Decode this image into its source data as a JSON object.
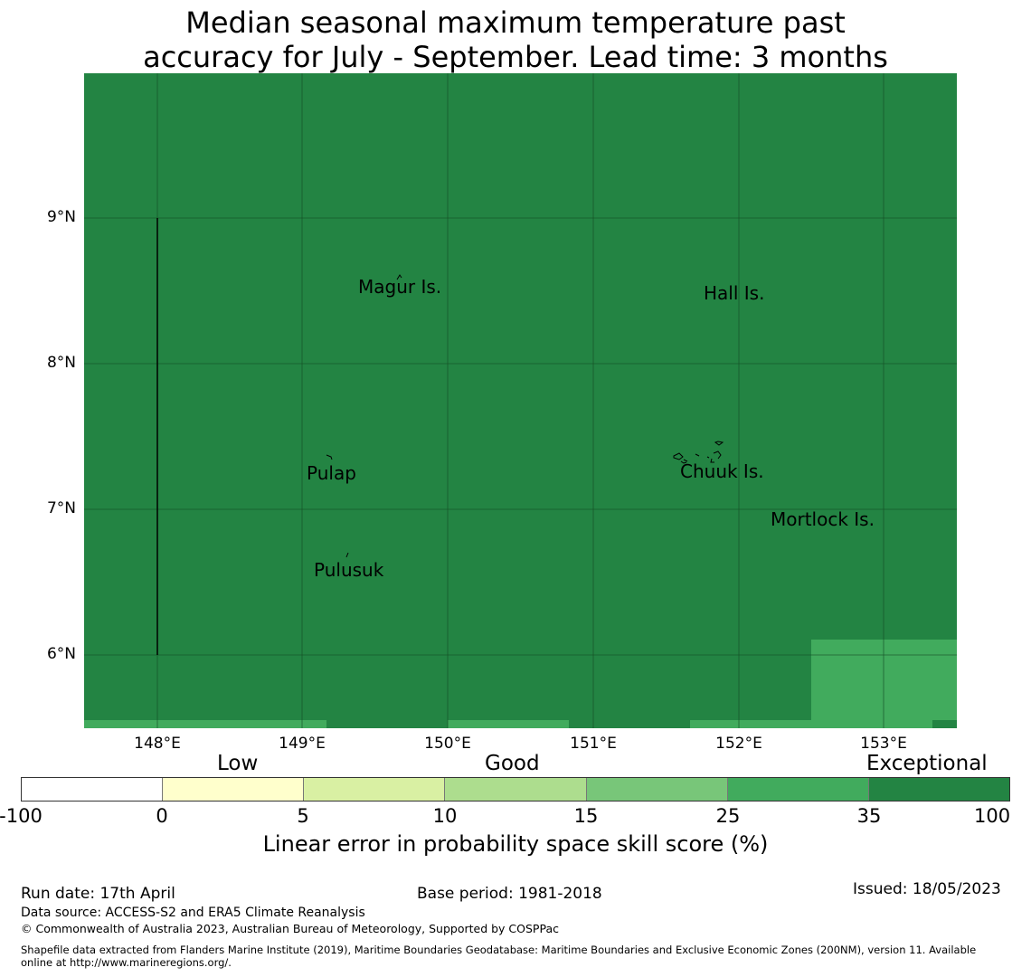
{
  "title": {
    "line1": "Median seasonal maximum temperature past",
    "line2": "accuracy for July - September. Lead time: 3 months"
  },
  "map": {
    "lat_ticks": [
      "9°N",
      "8°N",
      "7°N",
      "6°N"
    ],
    "lon_ticks": [
      "148°E",
      "149°E",
      "150°E",
      "151°E",
      "152°E",
      "153°E"
    ],
    "places": [
      "Magur Is.",
      "Hall Is.",
      "Pulap",
      "Chuuk Is.",
      "Mortlock Is.",
      "Pulusuk"
    ],
    "colors": {
      "exceptional": "#238443",
      "good_high": "#41ab5d"
    }
  },
  "colorbar": {
    "categories": [
      "Low",
      "Good",
      "Exceptional"
    ],
    "ticks": [
      "-100",
      "0",
      "5",
      "10",
      "15",
      "25",
      "35",
      "100"
    ],
    "colors": [
      "#ffffff",
      "#ffffcc",
      "#d9f0a3",
      "#addd8e",
      "#78c679",
      "#41ab5d",
      "#238443"
    ],
    "title": "Linear error in probability space skill score (%)"
  },
  "footer": {
    "run_date": "Run date: 17th April",
    "base_period": "Base period: 1981-2018",
    "issued": "Issued: 18/05/2023",
    "data_source": "Data source: ACCESS-S2 and ERA5 Climate Reanalysis",
    "copyright": "© Commonwealth of Australia 2023, Australian Bureau of Meteorology, Supported by COSPPac",
    "shapefile_line1": "Shapefile data extracted from Flanders Marine Institute (2019), Maritime Boundaries Geodatabase: Maritime Boundaries and Exclusive Economic Zones (200NM), version 11. Available",
    "shapefile_line2": "online at http://www.marineregions.org/."
  }
}
